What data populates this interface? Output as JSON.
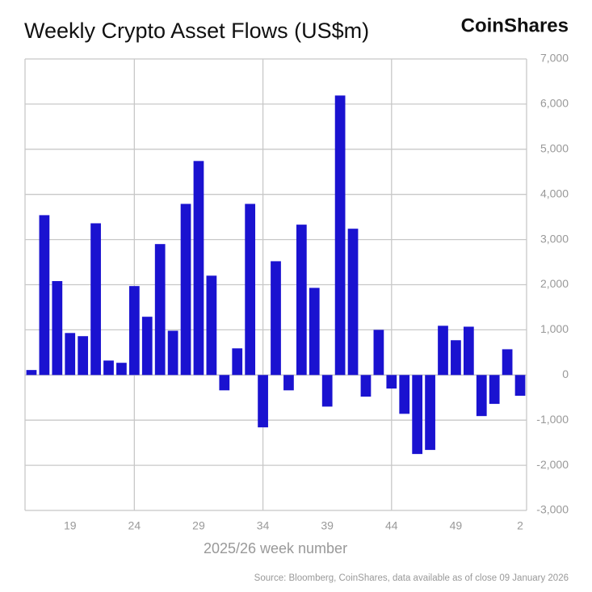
{
  "chart_data": {
    "type": "bar",
    "title": "Weekly Crypto Asset Flows (US$m)",
    "brand": "CoinShares",
    "xlabel": "2025/26 week number",
    "source": "Source: Bloomberg, CoinShares, data available as of close 09 January 2026",
    "categories": [
      null,
      null,
      null,
      "19",
      null,
      null,
      null,
      null,
      "24",
      null,
      null,
      null,
      null,
      "29",
      null,
      null,
      null,
      null,
      "34",
      null,
      null,
      null,
      null,
      "39",
      null,
      null,
      null,
      null,
      "44",
      null,
      null,
      null,
      null,
      "49",
      null,
      null,
      null,
      null,
      "2"
    ],
    "values": [
      110,
      3540,
      2080,
      930,
      860,
      3360,
      320,
      270,
      1970,
      1290,
      2900,
      980,
      3790,
      4740,
      2200,
      -340,
      590,
      3790,
      -1160,
      2520,
      -340,
      3330,
      1930,
      -700,
      6190,
      3240,
      -480,
      1000,
      -300,
      -860,
      -1750,
      -1660,
      1090,
      770,
      1070,
      -910,
      -640,
      570,
      -460
    ],
    "color": "#1a12d0",
    "ylim": [
      -3000,
      7000
    ],
    "yticks": [
      {
        "value": -3000,
        "label": "-3,000"
      },
      {
        "value": -2000,
        "label": "-2,000"
      },
      {
        "value": -1000,
        "label": "-1,000"
      },
      0,
      {
        "value": 1000,
        "label": "1,000"
      },
      {
        "value": 2000,
        "label": "2,000"
      },
      {
        "value": 3000,
        "label": "3,000"
      },
      {
        "value": 4000,
        "label": "4,000"
      },
      {
        "value": 5000,
        "label": "5,000"
      },
      {
        "value": 6000,
        "label": "6,000"
      },
      {
        "value": 7000,
        "label": "7,000"
      }
    ],
    "grid": true
  }
}
